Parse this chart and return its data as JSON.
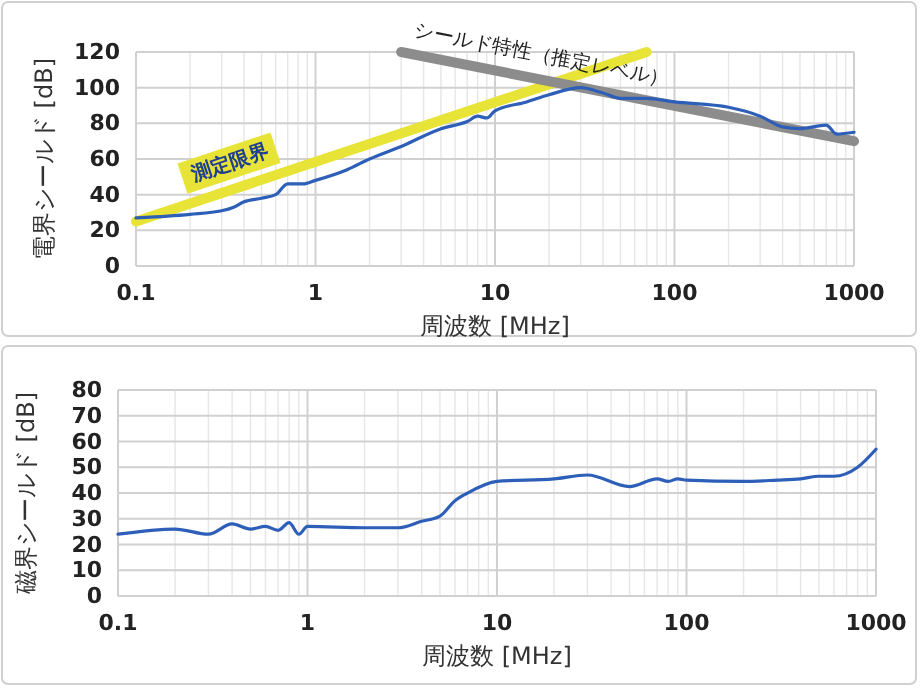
{
  "chart_data": [
    {
      "type": "line",
      "xlabel": "周波数 [MHz]",
      "ylabel": "電界シールド [dB]",
      "log": "x",
      "grid": true,
      "xlim": [
        0.1,
        1000
      ],
      "xticks": [
        0.1,
        1,
        10,
        100,
        1000
      ],
      "ylim": [
        0,
        120
      ],
      "yticks": [
        0,
        20,
        40,
        60,
        80,
        100,
        120
      ],
      "series": [
        {
          "color": "#2e5fb8",
          "x": [
            0.1,
            0.15,
            0.2,
            0.3,
            0.35,
            0.4,
            0.5,
            0.6,
            0.7,
            0.85,
            1,
            1.5,
            2,
            3,
            5,
            7,
            8,
            9,
            10,
            15,
            20,
            30,
            40,
            50,
            70,
            100,
            200,
            300,
            400,
            500,
            700,
            800,
            1000
          ],
          "values": [
            27,
            28,
            29,
            31,
            33,
            36,
            38,
            40,
            46,
            46,
            48,
            54,
            60,
            67,
            77,
            81,
            84,
            83,
            87,
            92,
            96,
            100,
            97,
            94,
            94,
            92,
            89,
            84,
            78,
            77,
            79,
            74,
            75
          ]
        },
        {
          "name": "測定限界",
          "color": "#e8e337",
          "x": [
            0.1,
            70
          ],
          "values": [
            25,
            120
          ]
        },
        {
          "name": "シールド特性（推定レベル）",
          "color": "#8c8c8c",
          "x": [
            3,
            1000
          ],
          "values": [
            120,
            70
          ]
        }
      ]
    },
    {
      "type": "line",
      "xlabel": "周波数 [MHz]",
      "ylabel": "磁界シールド [dB]",
      "log": "x",
      "grid": true,
      "xlim": [
        0.1,
        1000
      ],
      "xticks": [
        0.1,
        1,
        10,
        100,
        1000
      ],
      "ylim": [
        0,
        80
      ],
      "yticks": [
        0,
        10,
        20,
        30,
        40,
        50,
        60,
        70,
        80
      ],
      "series": [
        {
          "color": "#2e5fb8",
          "x": [
            0.1,
            0.2,
            0.3,
            0.4,
            0.5,
            0.6,
            0.7,
            0.8,
            0.9,
            1,
            2,
            3,
            4,
            5,
            6,
            7,
            10,
            20,
            30,
            50,
            70,
            80,
            90,
            100,
            200,
            300,
            400,
            500,
            600,
            800,
            1000
          ],
          "values": [
            24,
            26,
            24,
            28,
            26,
            27,
            25.5,
            28.5,
            24,
            27,
            26.5,
            26.5,
            29,
            31,
            37,
            40,
            44.5,
            45.5,
            47,
            42.5,
            45.5,
            44.5,
            45.5,
            45,
            44.5,
            45,
            45.5,
            46.5,
            46.5,
            50,
            57
          ]
        }
      ]
    }
  ]
}
